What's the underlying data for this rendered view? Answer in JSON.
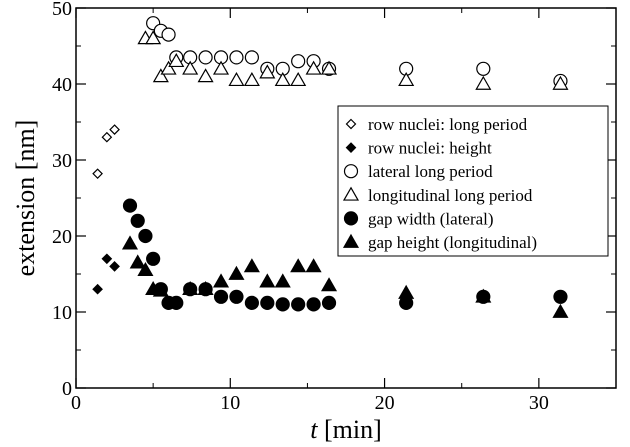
{
  "chart_data": {
    "type": "scatter",
    "title": "",
    "xlabel_italic": "t",
    "xlabel_rest": " [min]",
    "ylabel": "extension [nm]",
    "xlim": [
      0,
      35
    ],
    "ylim": [
      0,
      50
    ],
    "xticks": [
      "0",
      "10",
      "20",
      "30"
    ],
    "yticks": [
      "0",
      "10",
      "20",
      "30",
      "40",
      "50"
    ],
    "grid": false,
    "legend_position": "right-middle",
    "series": [
      {
        "name": "row nuclei: long period",
        "marker": "diamond-open",
        "points": [
          [
            1.4,
            28.2
          ],
          [
            2.0,
            33.0
          ],
          [
            2.5,
            34.0
          ]
        ]
      },
      {
        "name": "row nuclei: height",
        "marker": "diamond-filled",
        "points": [
          [
            1.4,
            13.0
          ],
          [
            2.0,
            17.0
          ],
          [
            2.5,
            16.0
          ]
        ]
      },
      {
        "name": "lateral long period",
        "marker": "circle-open",
        "points": [
          [
            5.0,
            48.0
          ],
          [
            5.5,
            47.0
          ],
          [
            6.0,
            46.5
          ],
          [
            6.5,
            43.5
          ],
          [
            7.4,
            43.5
          ],
          [
            8.4,
            43.5
          ],
          [
            9.4,
            43.5
          ],
          [
            10.4,
            43.5
          ],
          [
            11.4,
            43.5
          ],
          [
            12.4,
            42.0
          ],
          [
            13.4,
            42.0
          ],
          [
            14.4,
            43.0
          ],
          [
            15.4,
            43.0
          ],
          [
            16.4,
            42.0
          ],
          [
            21.4,
            42.0
          ],
          [
            26.4,
            42.0
          ],
          [
            31.4,
            40.4
          ]
        ]
      },
      {
        "name": "longitudinal long period",
        "marker": "triangle-open",
        "points": [
          [
            4.5,
            46.0
          ],
          [
            5.0,
            46.0
          ],
          [
            5.5,
            41.0
          ],
          [
            6.0,
            42.0
          ],
          [
            6.5,
            43.0
          ],
          [
            7.4,
            42.0
          ],
          [
            8.4,
            41.0
          ],
          [
            9.4,
            42.0
          ],
          [
            10.4,
            40.5
          ],
          [
            11.4,
            40.5
          ],
          [
            12.4,
            41.5
          ],
          [
            13.4,
            40.5
          ],
          [
            14.4,
            40.5
          ],
          [
            15.4,
            42.0
          ],
          [
            16.4,
            42.0
          ],
          [
            21.4,
            40.5
          ],
          [
            26.4,
            40.0
          ],
          [
            31.4,
            40.0
          ]
        ]
      },
      {
        "name": "gap width (lateral)",
        "marker": "circle-filled",
        "points": [
          [
            3.5,
            24.0
          ],
          [
            4.0,
            22.0
          ],
          [
            4.5,
            20.0
          ],
          [
            5.0,
            17.0
          ],
          [
            5.5,
            13.0
          ],
          [
            6.0,
            11.2
          ],
          [
            6.5,
            11.2
          ],
          [
            7.4,
            13.0
          ],
          [
            8.4,
            13.0
          ],
          [
            9.4,
            12.0
          ],
          [
            10.4,
            12.0
          ],
          [
            11.4,
            11.2
          ],
          [
            12.4,
            11.2
          ],
          [
            13.4,
            11.0
          ],
          [
            14.4,
            11.0
          ],
          [
            15.4,
            11.0
          ],
          [
            16.4,
            11.2
          ],
          [
            21.4,
            11.2
          ],
          [
            26.4,
            12.0
          ],
          [
            31.4,
            12.0
          ]
        ]
      },
      {
        "name": "gap height (longitudinal)",
        "marker": "triangle-filled",
        "points": [
          [
            3.5,
            19.0
          ],
          [
            4.0,
            16.5
          ],
          [
            4.5,
            15.5
          ],
          [
            5.0,
            13.0
          ],
          [
            5.5,
            12.8
          ],
          [
            7.4,
            13.0
          ],
          [
            8.4,
            13.0
          ],
          [
            9.4,
            14.0
          ],
          [
            10.4,
            15.0
          ],
          [
            11.4,
            16.0
          ],
          [
            12.4,
            14.0
          ],
          [
            13.4,
            14.0
          ],
          [
            14.4,
            16.0
          ],
          [
            15.4,
            16.0
          ],
          [
            16.4,
            13.5
          ],
          [
            21.4,
            12.5
          ],
          [
            26.4,
            12.0
          ],
          [
            31.4,
            10.0
          ]
        ]
      }
    ]
  }
}
